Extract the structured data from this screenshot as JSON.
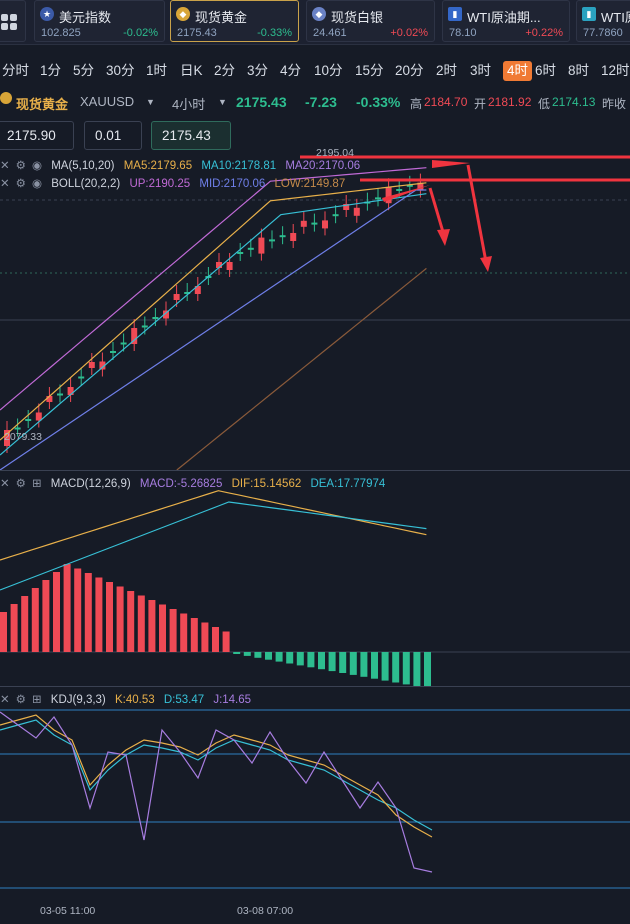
{
  "tickers": [
    {
      "name": "美元指数",
      "price": "102.825",
      "change": "-0.02%",
      "dir": "down",
      "icon": "us-flag-icon"
    },
    {
      "name": "现货黄金",
      "price": "2175.43",
      "change": "-0.33%",
      "dir": "down",
      "icon": "gold-coin-icon",
      "selected": true
    },
    {
      "name": "现货白银",
      "price": "24.461",
      "change": "+0.02%",
      "dir": "up",
      "icon": "silver-icon"
    },
    {
      "name": "WTI原油期...",
      "price": "78.10",
      "change": "+0.22%",
      "dir": "up",
      "icon": "wti-icon"
    },
    {
      "name": "WTI原",
      "price": "77.7860",
      "change": "",
      "dir": "up",
      "icon": "wti-icon"
    }
  ],
  "timeframes": [
    "分时",
    "1分",
    "5分",
    "30分",
    "1时",
    "日K",
    "2分",
    "3分",
    "4分",
    "10分",
    "15分",
    "20分",
    "2时",
    "3时",
    "4时",
    "6时",
    "8时",
    "12时"
  ],
  "selected_timeframe": "4时",
  "symbol": {
    "name": "现货黄金",
    "code": "XAUUSD",
    "period": "4小时",
    "price": "2175.43",
    "change": "-7.23",
    "change_pct": "-0.33%",
    "high_label": "高",
    "high": "2184.70",
    "open_label": "开",
    "open": "2181.92",
    "low_label": "低",
    "low": "2174.13",
    "prev_label": "昨收"
  },
  "order": {
    "sell_price": "2175.90",
    "lots": "0.01",
    "buy_price": "2175.43"
  },
  "main_chart": {
    "ma": {
      "label": "MA(5,10,20)",
      "ma5": "MA5:2179.65",
      "ma10": "MA10:2178.81",
      "ma20": "MA20:2170.06"
    },
    "boll": {
      "label": "BOLL(20,2,2)",
      "up": "UP:2190.25",
      "mid": "MID:2170.06",
      "low": "LOW:2149.87"
    },
    "high_mark": "2195.04",
    "low_mark": "2079.33",
    "colors": {
      "up": "#f04a55",
      "down": "#2dbd8f",
      "ma5": "#e8b04a",
      "ma10": "#37c0d6",
      "ma20": "#a77de0",
      "boll_up": "#c06ad6",
      "boll_low": "#6f7fe8",
      "slow": "#8a5a3a",
      "arrow": "#f0343f"
    }
  },
  "macd": {
    "label": "MACD(12,26,9)",
    "macd": "MACD:-5.26825",
    "dif": "DIF:15.14562",
    "dea": "DEA:17.77974"
  },
  "kdj": {
    "label": "KDJ(9,3,3)",
    "k": "K:40.53",
    "d": "D:53.47",
    "j": "J:14.65"
  },
  "time_axis": [
    "03-05 11:00",
    "03-08 07:00"
  ]
}
